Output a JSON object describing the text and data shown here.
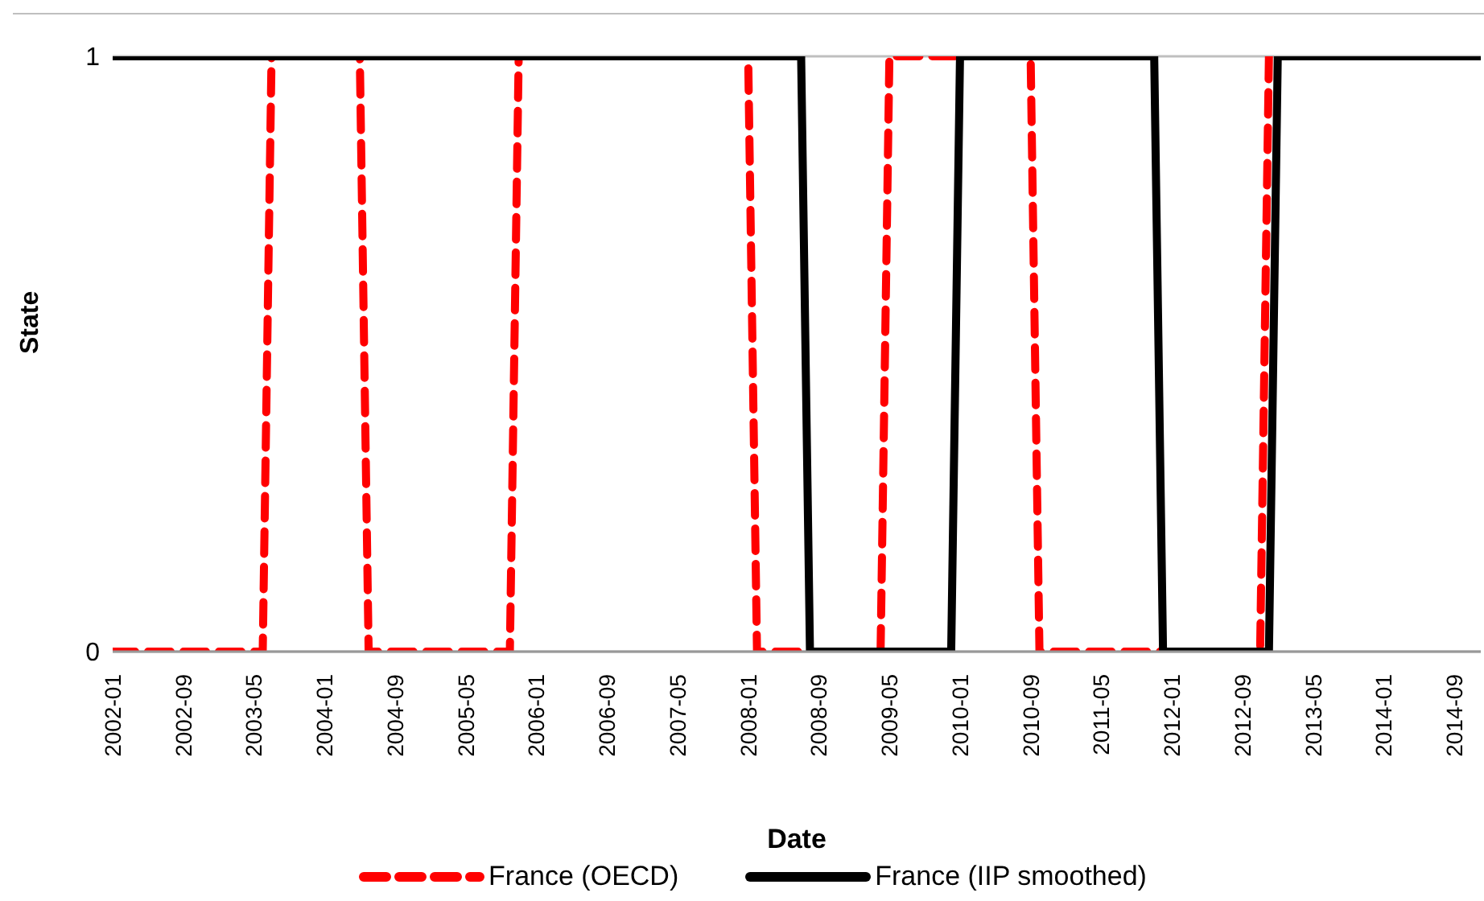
{
  "chart_data": {
    "type": "line",
    "xlabel": "Date",
    "ylabel": "State",
    "xlim": [
      "2002-01",
      "2014-12"
    ],
    "xticks": [
      "2002-01",
      "2002-09",
      "2003-05",
      "2004-01",
      "2004-09",
      "2005-05",
      "2006-01",
      "2006-09",
      "2007-05",
      "2008-01",
      "2008-09",
      "2009-05",
      "2010-01",
      "2010-09",
      "2011-05",
      "2012-01",
      "2012-09",
      "2013-05",
      "2014-01",
      "2014-09"
    ],
    "ylim": [
      0,
      1
    ],
    "yticks": [
      0,
      1
    ],
    "grid": "y",
    "legend": "bottom",
    "marker": "none",
    "series": [
      {
        "name": "France (OECD)",
        "color": "#ff0000",
        "line_style": "dashed",
        "x": [
          "2002-01",
          "2003-06",
          "2003-07",
          "2004-05",
          "2004-06",
          "2005-10",
          "2005-11",
          "2008-01",
          "2008-02",
          "2009-04",
          "2009-05",
          "2010-09",
          "2010-10",
          "2012-11",
          "2012-12"
        ],
        "values": [
          0,
          0,
          1,
          1,
          0,
          0,
          1,
          1,
          0,
          0,
          1,
          1,
          0,
          0,
          1
        ]
      },
      {
        "name": "France (IIP smoothed)",
        "color": "#000000",
        "line_style": "solid",
        "x": [
          "2002-01",
          "2008-07",
          "2008-08",
          "2009-12",
          "2010-01",
          "2011-11",
          "2011-12",
          "2012-12",
          "2013-01",
          "2014-12"
        ],
        "values": [
          1,
          1,
          0,
          0,
          1,
          1,
          0,
          0,
          1,
          1
        ]
      }
    ]
  }
}
